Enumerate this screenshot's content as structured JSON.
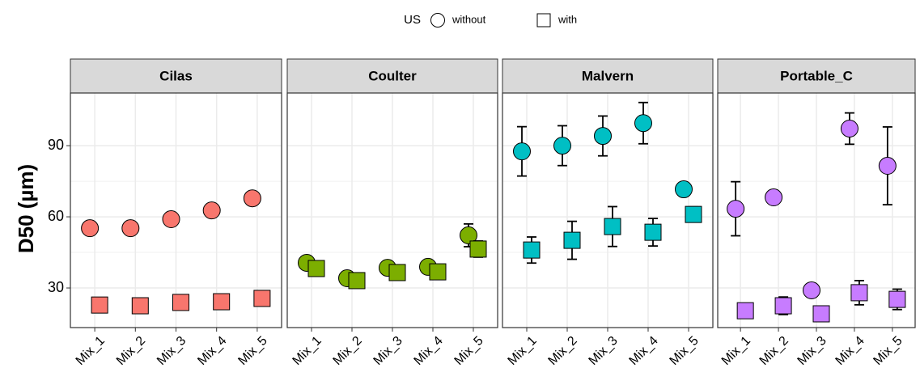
{
  "ylabel": "D50 (µm)",
  "legend_title": "US",
  "chart_data": [
    {
      "type": "scatter",
      "title": "Cilas",
      "categories": [
        "Mix_1",
        "Mix_2",
        "Mix_3",
        "Mix_4",
        "Mix_5"
      ],
      "color": "#f8766d",
      "ylim": [
        13.3,
        112.2
      ],
      "yticks": [
        30,
        60,
        90
      ],
      "grid": true,
      "series": [
        {
          "name": "without",
          "values": [
            55.2,
            55.2,
            59,
            62.7,
            67.8
          ],
          "errors": [
            null,
            null,
            null,
            null,
            null
          ]
        },
        {
          "name": "with",
          "values": [
            22.8,
            22.5,
            23.9,
            24.2,
            25.6
          ],
          "errors": [
            null,
            null,
            null,
            null,
            null
          ]
        }
      ]
    },
    {
      "type": "scatter",
      "title": "Coulter",
      "categories": [
        "Mix_1",
        "Mix_2",
        "Mix_3",
        "Mix_4",
        "Mix_5"
      ],
      "color": "#7cae00",
      "ylim": [
        13.3,
        112.2
      ],
      "yticks": [
        30,
        60,
        90
      ],
      "grid": true,
      "series": [
        {
          "name": "without",
          "values": [
            40.6,
            34.1,
            38.5,
            38.9,
            52.2
          ],
          "errors": [
            null,
            null,
            null,
            null,
            4.8
          ]
        },
        {
          "name": "with",
          "values": [
            38.2,
            33.1,
            36.5,
            36.8,
            46.4
          ],
          "errors": [
            null,
            null,
            null,
            null,
            3.4
          ]
        }
      ]
    },
    {
      "type": "scatter",
      "title": "Malvern",
      "categories": [
        "Mix_1",
        "Mix_2",
        "Mix_3",
        "Mix_4",
        "Mix_5"
      ],
      "color": "#00bfc4",
      "ylim": [
        13.3,
        112.2
      ],
      "yticks": [
        30,
        60,
        90
      ],
      "grid": true,
      "series": [
        {
          "name": "without",
          "values": [
            87.6,
            90,
            94.1,
            99.5,
            71.6
          ],
          "errors": [
            10.4,
            8.4,
            8.4,
            8.7,
            null
          ]
        },
        {
          "name": "with",
          "values": [
            46,
            50.1,
            55.9,
            53.5,
            61
          ],
          "errors": [
            5.5,
            8,
            8.4,
            5.8,
            3.2
          ]
        }
      ]
    },
    {
      "type": "scatter",
      "title": "Portable_C",
      "categories": [
        "Mix_1",
        "Mix_2",
        "Mix_3",
        "Mix_4",
        "Mix_5"
      ],
      "color": "#c77cff",
      "ylim": [
        13.3,
        112.2
      ],
      "yticks": [
        30,
        60,
        90
      ],
      "grid": true,
      "series": [
        {
          "name": "without",
          "values": [
            63.4,
            68.2,
            29,
            97.2,
            81.5
          ],
          "errors": [
            11.4,
            null,
            null,
            6.6,
            16.4
          ]
        },
        {
          "name": "with",
          "values": [
            20.4,
            22.5,
            19.1,
            28,
            25.2
          ],
          "errors": [
            null,
            3.7,
            null,
            5.1,
            4.3
          ]
        }
      ]
    }
  ]
}
